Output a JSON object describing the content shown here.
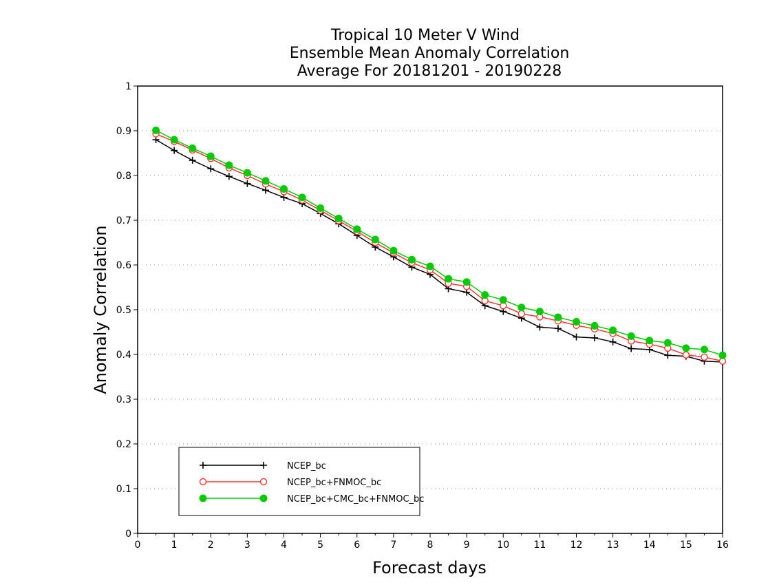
{
  "chart_data": {
    "type": "line",
    "title": [
      "Tropical 10 Meter V Wind",
      "Ensemble Mean Anomaly Correlation",
      "Average For 20181201 - 20190228"
    ],
    "xlabel": "Forecast days",
    "ylabel": "Anomaly Correlation",
    "xlim": [
      0,
      16
    ],
    "ylim": [
      0,
      1
    ],
    "x_ticks": [
      "0",
      "1",
      "2",
      "3",
      "4",
      "5",
      "6",
      "7",
      "8",
      "9",
      "10",
      "11",
      "12",
      "13",
      "14",
      "15",
      "16"
    ],
    "y_ticks": [
      "0",
      "0.1",
      "0.2",
      "0.3",
      "0.4",
      "0.5",
      "0.6",
      "0.7",
      "0.8",
      "0.9",
      "1"
    ],
    "grid": "horizontal dotted",
    "legend_position": "bottom-left",
    "x": [
      0.5,
      1,
      1.5,
      2,
      2.5,
      3,
      3.5,
      4,
      4.5,
      5,
      5.5,
      6,
      6.5,
      7,
      7.5,
      8,
      8.5,
      9,
      9.5,
      10,
      10.5,
      11,
      11.5,
      12,
      12.5,
      13,
      13.5,
      14,
      14.5,
      15,
      15.5,
      16
    ],
    "series": [
      {
        "name": "NCEP_bc",
        "color": "#000000",
        "marker": "plus",
        "values": [
          0.88,
          0.856,
          0.834,
          0.815,
          0.798,
          0.782,
          0.767,
          0.751,
          0.737,
          0.715,
          0.692,
          0.666,
          0.64,
          0.618,
          0.595,
          0.579,
          0.547,
          0.539,
          0.509,
          0.496,
          0.481,
          0.461,
          0.458,
          0.439,
          0.437,
          0.428,
          0.413,
          0.411,
          0.398,
          0.396,
          0.385,
          0.383
        ]
      },
      {
        "name": "NCEP_bc+FNMOC_bc",
        "color": "#ff3333",
        "marker": "open-circle",
        "values": [
          0.893,
          0.876,
          0.857,
          0.838,
          0.817,
          0.8,
          0.781,
          0.764,
          0.745,
          0.722,
          0.699,
          0.675,
          0.65,
          0.627,
          0.605,
          0.589,
          0.559,
          0.552,
          0.52,
          0.509,
          0.491,
          0.484,
          0.475,
          0.465,
          0.457,
          0.447,
          0.43,
          0.423,
          0.414,
          0.399,
          0.394,
          0.385
        ]
      },
      {
        "name": "NCEP_bc+CMC_bc+FNMOC_bc",
        "color": "#00cc00",
        "marker": "filled-circle",
        "values": [
          0.901,
          0.88,
          0.861,
          0.843,
          0.823,
          0.806,
          0.788,
          0.77,
          0.751,
          0.727,
          0.704,
          0.68,
          0.657,
          0.632,
          0.612,
          0.597,
          0.569,
          0.562,
          0.533,
          0.522,
          0.505,
          0.496,
          0.483,
          0.473,
          0.464,
          0.454,
          0.441,
          0.431,
          0.426,
          0.414,
          0.411,
          0.398
        ]
      }
    ]
  }
}
